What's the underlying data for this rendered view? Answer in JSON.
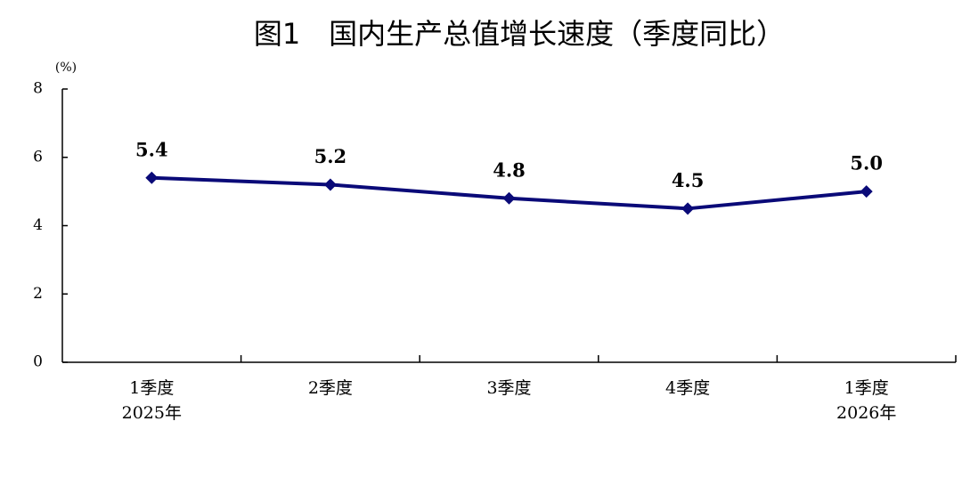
{
  "chart_data": {
    "type": "line",
    "title": "图1　国内生产总值增长速度（季度同比）",
    "y_unit": "(%)",
    "categories": [
      [
        "1季度",
        "2025年"
      ],
      [
        "2季度"
      ],
      [
        "3季度"
      ],
      [
        "4季度"
      ],
      [
        "1季度",
        "2026年"
      ]
    ],
    "series": [
      {
        "name": "国内生产总值增长速度",
        "color": "#0a0a78",
        "values": [
          5.4,
          5.2,
          4.8,
          4.5,
          5.0
        ],
        "value_labels": [
          "5.4",
          "5.2",
          "4.8",
          "4.5",
          "5.0"
        ]
      }
    ],
    "ylim": [
      0,
      8
    ],
    "yticks": [
      0,
      2,
      4,
      6,
      8
    ],
    "grid": false
  }
}
